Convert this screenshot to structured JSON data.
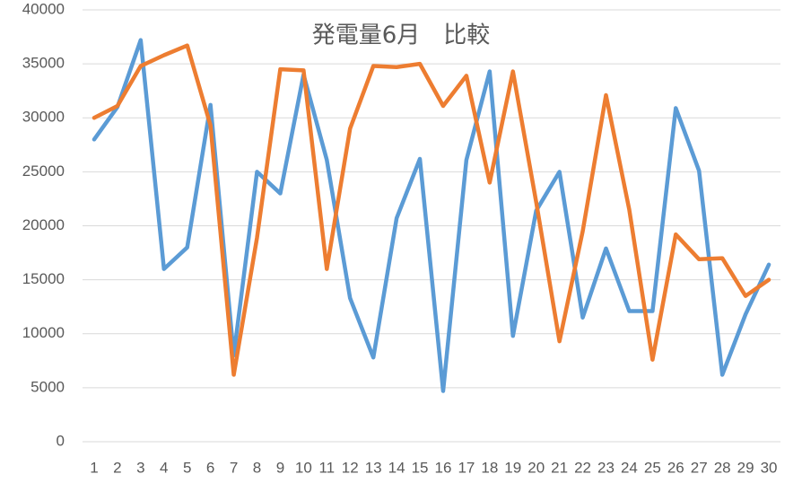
{
  "chart_data": {
    "type": "line",
    "title": "発電量6月　比較",
    "categories": [
      "1",
      "2",
      "3",
      "4",
      "5",
      "6",
      "7",
      "8",
      "9",
      "10",
      "11",
      "12",
      "13",
      "14",
      "15",
      "16",
      "17",
      "18",
      "19",
      "20",
      "21",
      "22",
      "23",
      "24",
      "25",
      "26",
      "27",
      "28",
      "29",
      "30"
    ],
    "series": [
      {
        "color": "#5b9bd5",
        "values": [
          28000,
          31000,
          37200,
          16000,
          18000,
          31200,
          8000,
          25000,
          23000,
          34000,
          26100,
          13300,
          7800,
          20700,
          26200,
          4700,
          26100,
          34300,
          9800,
          21400,
          25000,
          11500,
          17900,
          12100,
          12100,
          30900,
          25100,
          6200,
          11800,
          16400
        ]
      },
      {
        "color": "#ed7d31",
        "values": [
          30000,
          31100,
          34800,
          35800,
          36700,
          29300,
          6200,
          18900,
          34500,
          34400,
          16000,
          29000,
          34800,
          34700,
          35000,
          31100,
          33900,
          24000,
          34300,
          22200,
          9300,
          19500,
          32100,
          21500,
          7600,
          19200,
          16900,
          17000,
          13500,
          15000
        ]
      }
    ],
    "ylim": [
      0,
      40000
    ],
    "yticks": [
      0,
      5000,
      10000,
      15000,
      20000,
      25000,
      30000,
      35000,
      40000
    ],
    "grid": true
  }
}
